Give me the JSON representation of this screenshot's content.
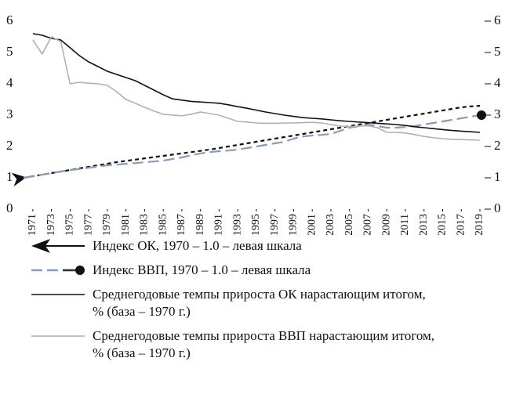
{
  "chart_data": {
    "type": "line",
    "x": [
      1970,
      1971,
      1972,
      1973,
      1974,
      1975,
      1976,
      1977,
      1978,
      1979,
      1980,
      1981,
      1982,
      1983,
      1984,
      1985,
      1986,
      1987,
      1988,
      1989,
      1990,
      1991,
      1992,
      1993,
      1994,
      1995,
      1996,
      1997,
      1998,
      1999,
      2000,
      2001,
      2002,
      2003,
      2004,
      2005,
      2006,
      2007,
      2008,
      2009,
      2010,
      2011,
      2012,
      2013,
      2014,
      2015,
      2016,
      2017,
      2018,
      2019
    ],
    "xlim": [
      1970,
      2019
    ],
    "xticks": [
      1971,
      1973,
      1975,
      1977,
      1979,
      1981,
      1983,
      1985,
      1987,
      1989,
      1991,
      1993,
      1995,
      1997,
      1999,
      2001,
      2003,
      2005,
      2007,
      2009,
      2011,
      2013,
      2015,
      2017,
      2019
    ],
    "ylim": [
      0,
      6
    ],
    "yticks": [
      0,
      1,
      2,
      3,
      4,
      5,
      6
    ],
    "y2lim": [
      0,
      6
    ],
    "y2ticks": [
      0,
      1,
      2,
      3,
      4,
      5,
      6
    ],
    "series": [
      {
        "name": "Индекс ОК, 1970 – 1.0 – левая шкала",
        "color": "#111111",
        "style": "dashed",
        "values": [
          1.0,
          1.05,
          1.1,
          1.15,
          1.2,
          1.25,
          1.3,
          1.35,
          1.4,
          1.45,
          1.5,
          1.54,
          1.58,
          1.62,
          1.66,
          1.7,
          1.74,
          1.78,
          1.82,
          1.86,
          1.9,
          1.95,
          2.0,
          2.05,
          2.1,
          2.15,
          2.2,
          2.25,
          2.3,
          2.35,
          2.4,
          2.45,
          2.5,
          2.55,
          2.6,
          2.65,
          2.7,
          2.75,
          2.8,
          2.85,
          2.9,
          2.95,
          3.0,
          3.05,
          3.1,
          3.15,
          3.2,
          3.25,
          3.28,
          3.3
        ]
      },
      {
        "name": "Индекс ВВП, 1970 – 1.0 – левая шкала",
        "color": "#8a9bb8",
        "style": "dashed",
        "values": [
          1.0,
          1.05,
          1.1,
          1.15,
          1.2,
          1.25,
          1.28,
          1.32,
          1.36,
          1.4,
          1.42,
          1.45,
          1.47,
          1.5,
          1.52,
          1.55,
          1.6,
          1.65,
          1.72,
          1.78,
          1.82,
          1.85,
          1.87,
          1.9,
          1.95,
          2.0,
          2.05,
          2.1,
          2.15,
          2.25,
          2.32,
          2.35,
          2.37,
          2.4,
          2.5,
          2.6,
          2.65,
          2.7,
          2.65,
          2.6,
          2.6,
          2.62,
          2.65,
          2.7,
          2.75,
          2.8,
          2.85,
          2.9,
          2.95,
          3.0
        ]
      },
      {
        "name": "Среднегодовые темпы прироста ОК нарастающим итогом, % (база – 1970 г.)",
        "color": "#111111",
        "style": "solid",
        "axis": "y2",
        "values": [
          null,
          5.6,
          5.55,
          5.45,
          5.4,
          5.15,
          4.9,
          4.7,
          4.55,
          4.4,
          4.3,
          4.2,
          4.1,
          3.95,
          3.8,
          3.65,
          3.52,
          3.48,
          3.44,
          3.42,
          3.4,
          3.38,
          3.33,
          3.27,
          3.22,
          3.16,
          3.1,
          3.05,
          3.0,
          2.96,
          2.92,
          2.9,
          2.88,
          2.85,
          2.82,
          2.8,
          2.78,
          2.76,
          2.74,
          2.72,
          2.7,
          2.67,
          2.63,
          2.6,
          2.57,
          2.54,
          2.51,
          2.49,
          2.47,
          2.45
        ]
      },
      {
        "name": "Среднегодовые темпы прироста ВВП нарастающим итогом, % (база – 1970 г.)",
        "color": "#b0b0b0",
        "style": "solid",
        "axis": "y2",
        "values": [
          null,
          5.4,
          4.95,
          5.5,
          5.35,
          4.0,
          4.05,
          4.02,
          4.0,
          3.95,
          3.75,
          3.5,
          3.38,
          3.25,
          3.13,
          3.03,
          3.0,
          2.98,
          3.03,
          3.1,
          3.05,
          3.0,
          2.9,
          2.8,
          2.78,
          2.75,
          2.74,
          2.74,
          2.75,
          2.75,
          2.76,
          2.77,
          2.75,
          2.7,
          2.65,
          2.63,
          2.65,
          2.66,
          2.6,
          2.45,
          2.45,
          2.43,
          2.38,
          2.32,
          2.28,
          2.25,
          2.23,
          2.22,
          2.21,
          2.2
        ]
      }
    ]
  }
}
